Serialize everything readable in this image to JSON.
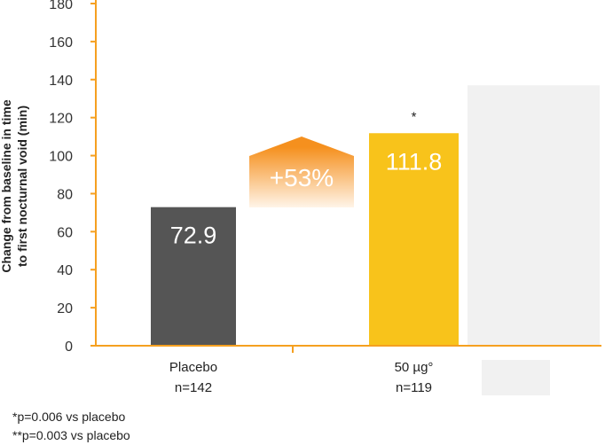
{
  "chart_data": {
    "type": "bar",
    "ylabel": [
      "Change from baseline in time",
      "to first nocturnal void (min)"
    ],
    "ylim": [
      0,
      180
    ],
    "yticks": [
      0,
      20,
      40,
      60,
      80,
      100,
      120,
      140,
      160,
      180
    ],
    "grid": false,
    "bars": [
      {
        "category": "Placebo",
        "n": "n=142",
        "value": 72.9,
        "label": "72.9",
        "significance": "",
        "color": "#555555"
      },
      {
        "category": "50 µg°",
        "n": "n=119",
        "value": 111.8,
        "label": "111.8",
        "significance": "*",
        "color": "#F8C31B"
      }
    ],
    "hidden_bar": {
      "value": 137,
      "color": "#F1F1F1"
    },
    "difference": {
      "label": "+53%",
      "color_top": "#F5901E",
      "color_bottom": "#FFF4E8"
    }
  },
  "footnotes": [
    "*p=0.006 vs placebo",
    "**p=0.003 vs placebo"
  ]
}
